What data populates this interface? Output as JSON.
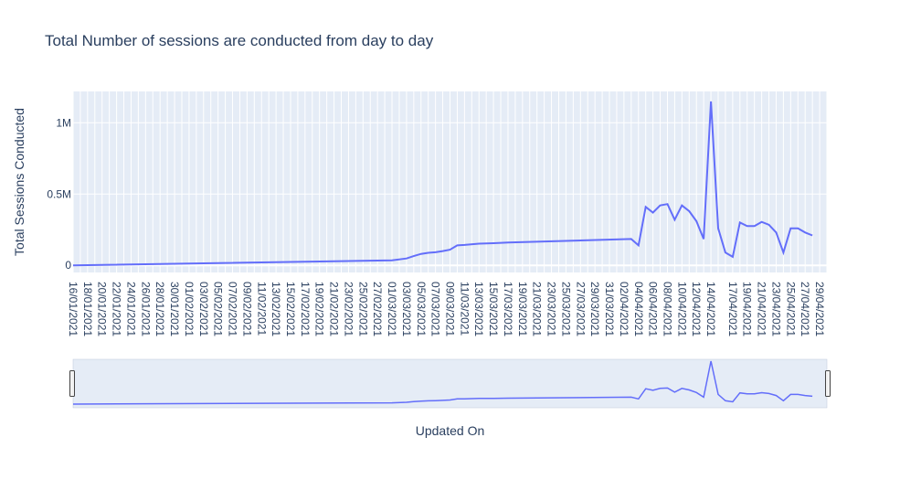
{
  "colors": {
    "plot_bg": "#e5ecf6",
    "grid": "#ffffff",
    "line": "#636efa",
    "text": "#2a3f5f",
    "rangeslider_bg": "#e5ecf6"
  },
  "chart_data": {
    "type": "line",
    "title": "Total Number of sessions are conducted from day to day",
    "xlabel": "Updated On",
    "ylabel": "Total Sessions Conducted",
    "ylim": [
      -50000,
      1220000
    ],
    "y_ticks": [
      {
        "value": 0,
        "label": "0"
      },
      {
        "value": 500000,
        "label": "0.5M"
      },
      {
        "value": 1000000,
        "label": "1M"
      }
    ],
    "x_range": [
      "2021-01-16",
      "2021-04-30"
    ],
    "x_tick_labels": [
      "16/01/2021",
      "18/01/2021",
      "20/01/2021",
      "22/01/2021",
      "24/01/2021",
      "26/01/2021",
      "28/01/2021",
      "30/01/2021",
      "01/02/2021",
      "03/02/2021",
      "05/02/2021",
      "07/02/2021",
      "09/02/2021",
      "11/02/2021",
      "13/02/2021",
      "15/02/2021",
      "17/02/2021",
      "19/02/2021",
      "21/02/2021",
      "23/02/2021",
      "25/02/2021",
      "27/02/2021",
      "01/03/2021",
      "03/03/2021",
      "05/03/2021",
      "07/03/2021",
      "09/03/2021",
      "11/03/2021",
      "13/03/2021",
      "15/03/2021",
      "17/03/2021",
      "19/03/2021",
      "21/03/2021",
      "23/03/2021",
      "25/03/2021",
      "27/03/2021",
      "29/03/2021",
      "31/03/2021",
      "02/04/2021",
      "04/04/2021",
      "06/04/2021",
      "08/04/2021",
      "10/04/2021",
      "12/04/2021",
      "14/04/2021",
      "17/04/2021",
      "19/04/2021",
      "21/04/2021",
      "23/04/2021",
      "25/04/2021",
      "27/04/2021",
      "29/04/2021"
    ],
    "grid": true,
    "rangeslider": true,
    "series": [
      {
        "points": [
          [
            "2021-01-16",
            0
          ],
          [
            "2021-03-01",
            35000
          ],
          [
            "2021-03-03",
            48000
          ],
          [
            "2021-03-04",
            65000
          ],
          [
            "2021-03-05",
            80000
          ],
          [
            "2021-03-06",
            88000
          ],
          [
            "2021-03-07",
            92000
          ],
          [
            "2021-03-08",
            100000
          ],
          [
            "2021-03-09",
            110000
          ],
          [
            "2021-03-10",
            140000
          ],
          [
            "2021-03-11",
            143000
          ],
          [
            "2021-03-13",
            152000
          ],
          [
            "2021-03-15",
            155000
          ],
          [
            "2021-03-17",
            160000
          ],
          [
            "2021-04-03",
            185000
          ],
          [
            "2021-04-04",
            140000
          ],
          [
            "2021-04-05",
            410000
          ],
          [
            "2021-04-06",
            370000
          ],
          [
            "2021-04-07",
            420000
          ],
          [
            "2021-04-08",
            430000
          ],
          [
            "2021-04-09",
            320000
          ],
          [
            "2021-04-10",
            420000
          ],
          [
            "2021-04-11",
            380000
          ],
          [
            "2021-04-12",
            310000
          ],
          [
            "2021-04-13",
            185000
          ],
          [
            "2021-04-14",
            1150000
          ],
          [
            "2021-04-15",
            260000
          ],
          [
            "2021-04-16",
            90000
          ],
          [
            "2021-04-17",
            60000
          ],
          [
            "2021-04-18",
            300000
          ],
          [
            "2021-04-19",
            275000
          ],
          [
            "2021-04-20",
            275000
          ],
          [
            "2021-04-21",
            305000
          ],
          [
            "2021-04-22",
            285000
          ],
          [
            "2021-04-23",
            230000
          ],
          [
            "2021-04-24",
            90000
          ],
          [
            "2021-04-25",
            260000
          ],
          [
            "2021-04-26",
            260000
          ],
          [
            "2021-04-27",
            230000
          ],
          [
            "2021-04-28",
            210000
          ]
        ]
      }
    ]
  }
}
